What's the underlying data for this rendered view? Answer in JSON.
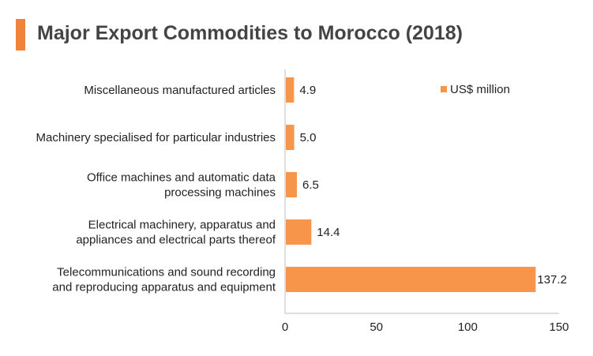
{
  "header": {
    "title": "Major Export Commodities to Morocco (2018)"
  },
  "colors": {
    "bar": "#f7964a",
    "accent": "#f0843c",
    "axis": "#bfbfbf"
  },
  "chart_data": {
    "type": "bar",
    "orientation": "horizontal",
    "title": "Major Export Commodities to Morocco (2018)",
    "xlabel": "",
    "ylabel": "",
    "xlim": [
      0,
      150
    ],
    "xticks": [
      0,
      50,
      100,
      150
    ],
    "grid": false,
    "legend": "top-right",
    "categories": [
      [
        "Miscellaneous manufactured articles"
      ],
      [
        "Machinery specialised for particular industries"
      ],
      [
        "Office machines and automatic data",
        "processing machines"
      ],
      [
        "Electrical machinery, apparatus and",
        "appliances and electrical parts thereof"
      ],
      [
        "Telecommunications and sound recording",
        "and reproducing apparatus and equipment"
      ]
    ],
    "series": [
      {
        "name": "US$ million",
        "values": [
          4.9,
          5.0,
          6.5,
          14.4,
          137.2
        ],
        "labels": [
          "4.9",
          "5.0",
          "6.5",
          "14.4",
          "137.2"
        ]
      }
    ]
  }
}
